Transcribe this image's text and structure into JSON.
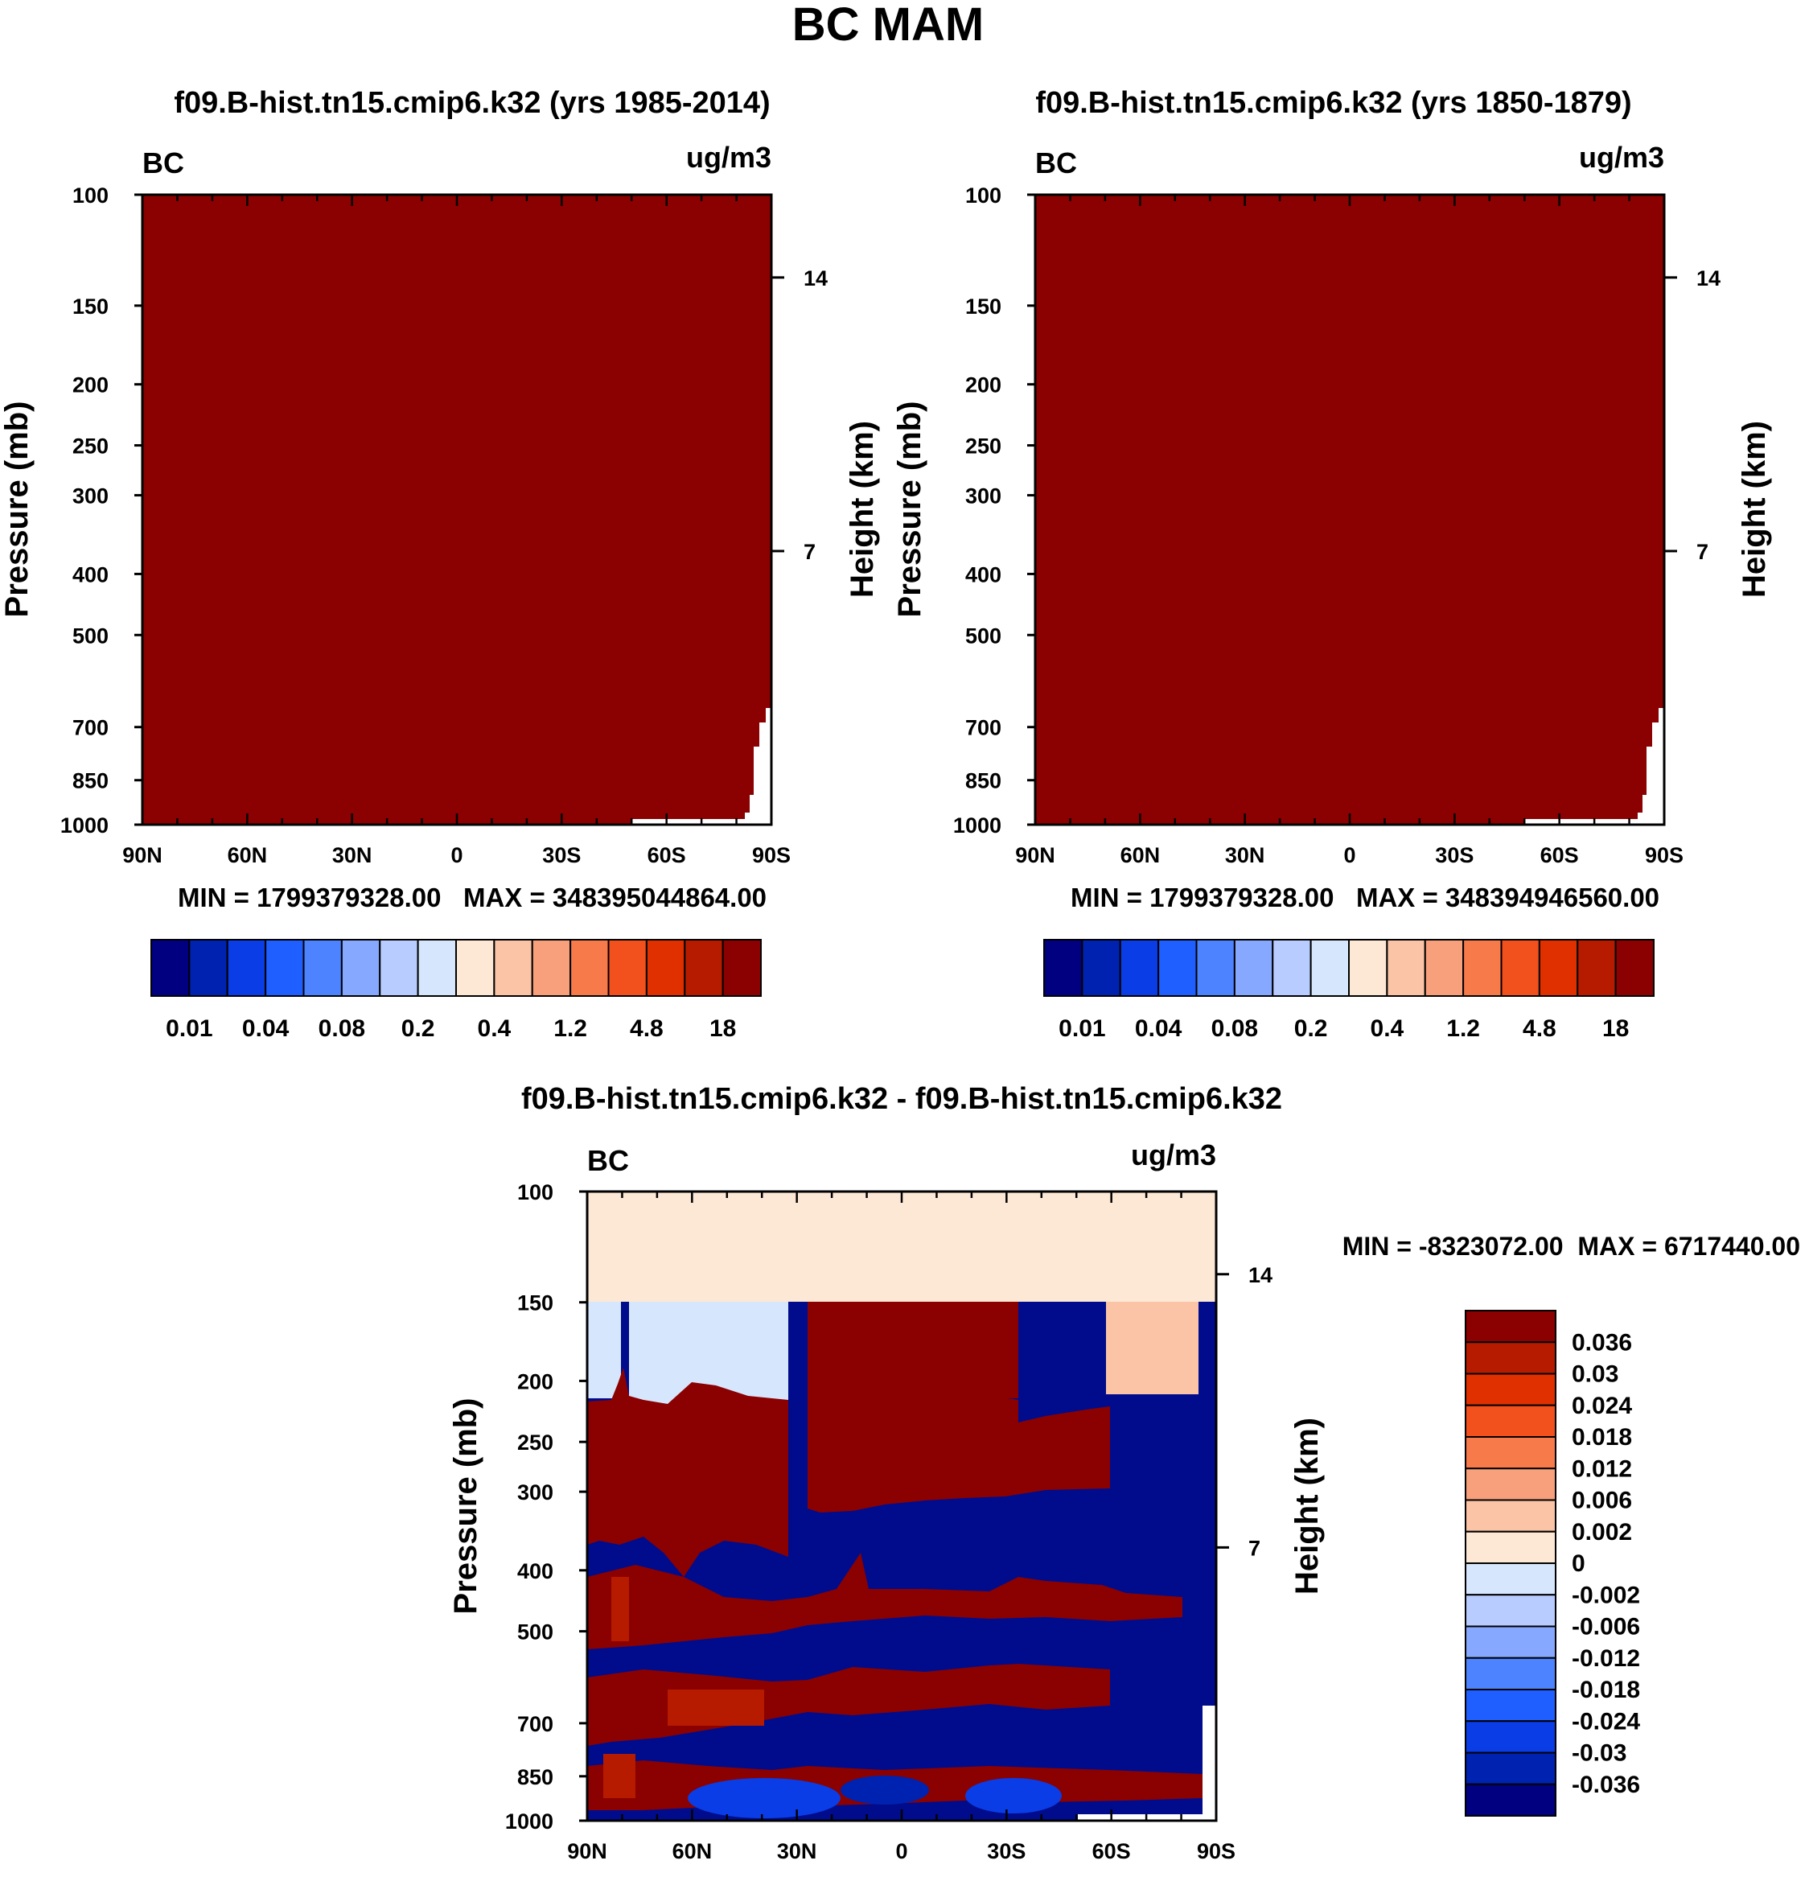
{
  "figure": {
    "title": "BC MAM"
  },
  "chart_data": [
    {
      "type": "contour",
      "id": "panel_a",
      "title": "f09.B-hist.tn15.cmip6.k32 (yrs 1985-2014)",
      "left_label": "BC",
      "units": "ug/m3",
      "ylabel": "Pressure (mb)",
      "ylabel_right": "Height (km)",
      "x_ticks": [
        "90N",
        "60N",
        "30N",
        "0",
        "30S",
        "60S",
        "90S"
      ],
      "y_ticks": [
        100,
        150,
        200,
        250,
        300,
        400,
        500,
        700,
        850,
        1000
      ],
      "right_ticks": [
        14,
        7
      ],
      "stats": "MIN = 1799379328.00   MAX = 348395044864.00",
      "fill_color": "#8B0000",
      "colorbar": {
        "colors": [
          "#000080",
          "#0022b0",
          "#0a3de6",
          "#1f5fff",
          "#4d83ff",
          "#86a9ff",
          "#b8ccff",
          "#d6e6fc",
          "#fde8d6",
          "#fbc4a6",
          "#f8a07c",
          "#f77a4a",
          "#f2501c",
          "#e03000",
          "#b61b00",
          "#8b0000"
        ],
        "labels": [
          "0.01",
          "0.04",
          "0.08",
          "0.2",
          "0.4",
          "1.2",
          "4.8",
          "18"
        ]
      }
    },
    {
      "type": "contour",
      "id": "panel_b",
      "title": "f09.B-hist.tn15.cmip6.k32 (yrs 1850-1879)",
      "left_label": "BC",
      "units": "ug/m3",
      "ylabel": "Pressure (mb)",
      "ylabel_right": "Height (km)",
      "x_ticks": [
        "90N",
        "60N",
        "30N",
        "0",
        "30S",
        "60S",
        "90S"
      ],
      "y_ticks": [
        100,
        150,
        200,
        250,
        300,
        400,
        500,
        700,
        850,
        1000
      ],
      "right_ticks": [
        14,
        7
      ],
      "stats": "MIN = 1799379328.00   MAX = 348394946560.00",
      "fill_color": "#8B0000",
      "colorbar": {
        "colors": [
          "#000080",
          "#0022b0",
          "#0a3de6",
          "#1f5fff",
          "#4d83ff",
          "#86a9ff",
          "#b8ccff",
          "#d6e6fc",
          "#fde8d6",
          "#fbc4a6",
          "#f8a07c",
          "#f77a4a",
          "#f2501c",
          "#e03000",
          "#b61b00",
          "#8b0000"
        ],
        "labels": [
          "0.01",
          "0.04",
          "0.08",
          "0.2",
          "0.4",
          "1.2",
          "4.8",
          "18"
        ]
      }
    },
    {
      "type": "contour",
      "id": "panel_diff",
      "title": "f09.B-hist.tn15.cmip6.k32 - f09.B-hist.tn15.cmip6.k32",
      "left_label": "BC",
      "units": "ug/m3",
      "ylabel": "Pressure (mb)",
      "ylabel_right": "Height (km)",
      "x_ticks": [
        "90N",
        "60N",
        "30N",
        "0",
        "30S",
        "60S",
        "90S"
      ],
      "y_ticks": [
        100,
        150,
        200,
        250,
        300,
        400,
        500,
        700,
        850,
        1000
      ],
      "right_ticks": [
        14,
        7
      ],
      "stats": "MIN = -8323072.00  MAX = 6717440.00",
      "colorbar": {
        "colors": [
          "#000080",
          "#0022b0",
          "#0a3de6",
          "#1f5fff",
          "#4d83ff",
          "#86a9ff",
          "#b8ccff",
          "#d6e6fc",
          "#fde8d6",
          "#fbc4a6",
          "#f8a07c",
          "#f77a4a",
          "#f2501c",
          "#e03000",
          "#b61b00",
          "#8b0000"
        ],
        "labels": [
          "0.036",
          "0.03",
          "0.024",
          "0.018",
          "0.012",
          "0.006",
          "0.002",
          "0",
          "-0.002",
          "-0.006",
          "-0.012",
          "-0.018",
          "-0.024",
          "-0.03",
          "-0.036"
        ]
      }
    }
  ]
}
